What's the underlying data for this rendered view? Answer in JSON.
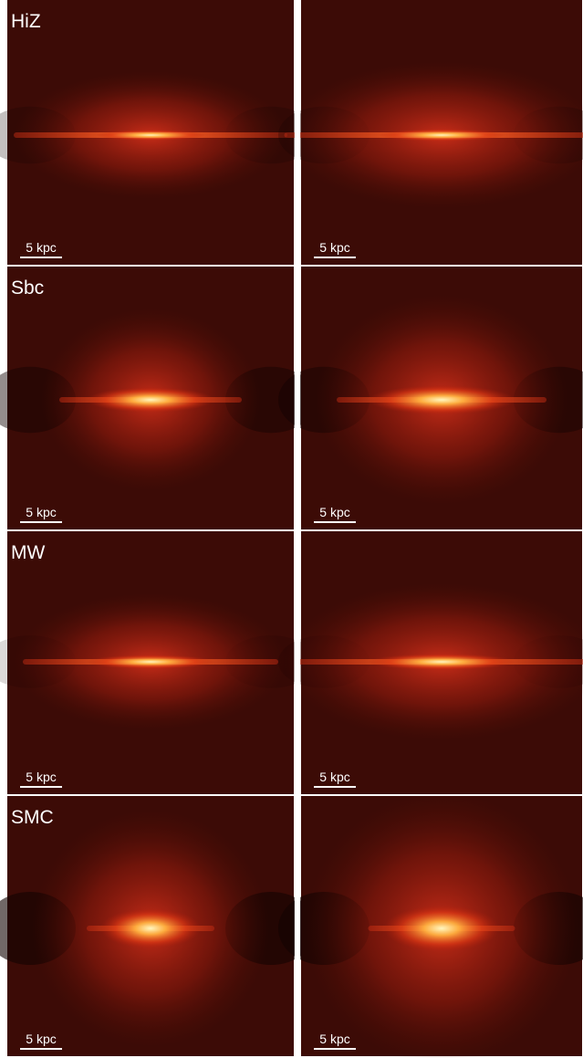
{
  "rows": [
    {
      "label": "HiZ",
      "panels": [
        {
          "scale": "5 kpc"
        },
        {
          "scale": "5 kpc"
        }
      ]
    },
    {
      "label": "Sbc",
      "panels": [
        {
          "scale": "5 kpc"
        },
        {
          "scale": "5 kpc"
        }
      ]
    },
    {
      "label": "MW",
      "panels": [
        {
          "scale": "5 kpc"
        },
        {
          "scale": "5 kpc"
        }
      ]
    },
    {
      "label": "SMC",
      "panels": [
        {
          "scale": "5 kpc"
        },
        {
          "scale": "5 kpc"
        }
      ]
    }
  ]
}
